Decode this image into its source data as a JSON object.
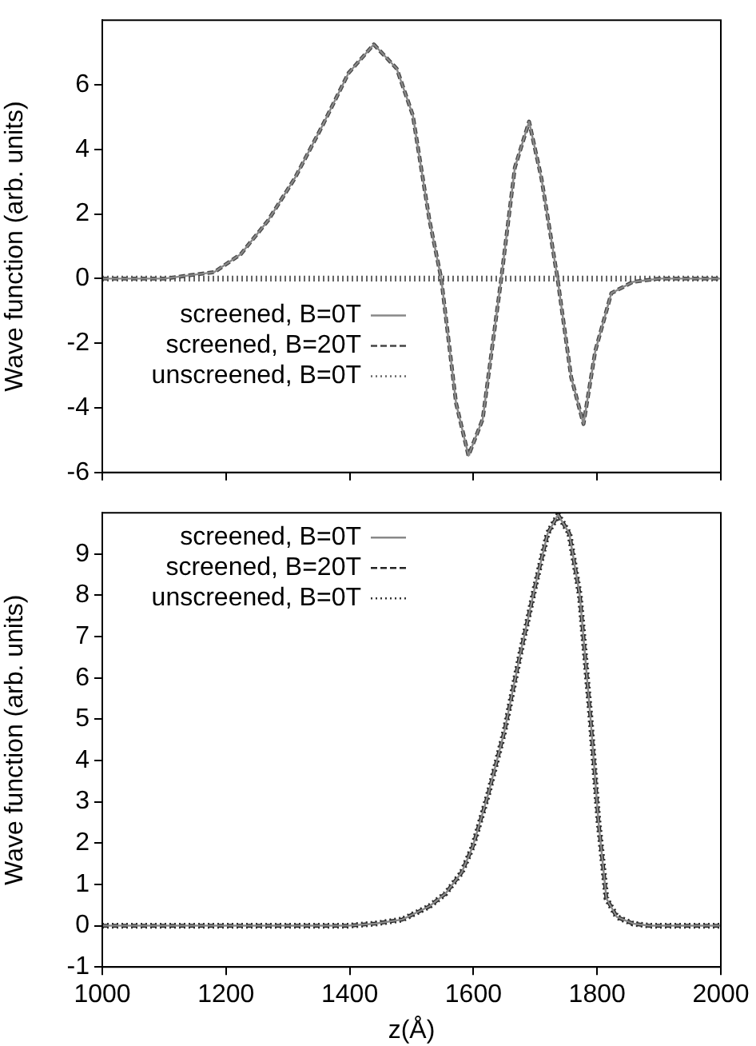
{
  "chart_data": [
    {
      "type": "line",
      "ylabel": "Wave function (arb. units)",
      "xlim": [
        1000,
        2000
      ],
      "xticks": [
        1000,
        1200,
        1400,
        1600,
        1800,
        2000
      ],
      "ylim": [
        -6,
        8
      ],
      "yticks": [
        -6,
        -4,
        -2,
        0,
        2,
        4,
        6
      ],
      "tick_labels": "y",
      "grid": false,
      "legend": "left",
      "marker": "none",
      "x": [
        1000,
        1100,
        1181,
        1224,
        1268,
        1311,
        1355,
        1398,
        1439,
        1476,
        1502,
        1529,
        1548,
        1572,
        1592,
        1615,
        1645,
        1667,
        1690,
        1710,
        1736,
        1758,
        1778,
        1797,
        1823,
        1858,
        1901,
        2000
      ],
      "series": [
        {
          "name": "screened, B=0T",
          "color": "#888888",
          "line_style": "solid",
          "values": [
            0,
            0,
            0.2,
            0.76,
            1.8,
            3.1,
            4.7,
            6.36,
            7.25,
            6.5,
            5.06,
            1.8,
            0,
            -3.86,
            -5.48,
            -4.35,
            0,
            3.44,
            4.86,
            3.1,
            0,
            -3.05,
            -4.5,
            -2.24,
            -0.45,
            -0.1,
            0,
            0
          ]
        },
        {
          "name": "screened, B=20T",
          "color": "#444444",
          "line_style": "dashed",
          "values": [
            0,
            0,
            0.2,
            0.76,
            1.8,
            3.1,
            4.7,
            6.36,
            7.25,
            6.5,
            5.06,
            1.8,
            0,
            -3.86,
            -5.48,
            -4.35,
            0,
            3.44,
            4.86,
            3.1,
            0,
            -3.05,
            -4.5,
            -2.24,
            -0.45,
            -0.1,
            0,
            0
          ]
        },
        {
          "name": "unscreened, B=0T",
          "color": "#666666",
          "line_style": "dotted",
          "values": [
            0,
            0,
            0,
            0,
            0,
            0,
            0,
            0,
            0,
            0,
            0,
            0,
            0,
            0,
            0,
            0,
            0,
            0,
            0,
            0,
            0,
            0,
            0,
            0,
            0,
            0,
            0,
            0
          ]
        }
      ]
    },
    {
      "type": "line",
      "xlabel": "z(Å)",
      "ylabel": "Wave function (arb. units)",
      "xlim": [
        1000,
        2000
      ],
      "xticks": [
        1000,
        1200,
        1400,
        1600,
        1800,
        2000
      ],
      "ylim": [
        -1,
        10
      ],
      "yticks": [
        -1,
        0,
        1,
        2,
        3,
        4,
        5,
        6,
        7,
        8,
        9
      ],
      "grid": false,
      "legend": "top left",
      "marker": "none",
      "x": [
        1000,
        1398,
        1441,
        1485,
        1529,
        1555,
        1581,
        1599,
        1624,
        1650,
        1676,
        1702,
        1720,
        1737,
        1755,
        1772,
        1789,
        1802,
        1815,
        1832,
        1858,
        1884,
        2000
      ],
      "series": [
        {
          "name": "screened, B=0T",
          "color": "#888888",
          "line_style": "solid",
          "values": [
            0,
            0,
            0.05,
            0.15,
            0.47,
            0.78,
            1.29,
            1.92,
            3.19,
            4.7,
            6.6,
            8.37,
            9.5,
            9.95,
            9.5,
            8.0,
            5.08,
            2.55,
            0.66,
            0.21,
            0.05,
            0,
            0
          ]
        },
        {
          "name": "screened, B=20T",
          "color": "#222222",
          "line_style": "dashed",
          "values": [
            0,
            0,
            0.05,
            0.15,
            0.47,
            0.78,
            1.29,
            1.92,
            3.19,
            4.7,
            6.6,
            8.37,
            9.5,
            9.95,
            9.5,
            8.0,
            5.08,
            2.55,
            0.66,
            0.21,
            0.05,
            0,
            0
          ]
        },
        {
          "name": "unscreened, B=0T",
          "color": "#333333",
          "line_style": "dotted",
          "values": [
            0,
            0,
            0.05,
            0.15,
            0.47,
            0.78,
            1.29,
            1.92,
            3.19,
            4.7,
            6.6,
            8.37,
            9.5,
            9.95,
            9.5,
            8.0,
            5.08,
            2.55,
            0.66,
            0.21,
            0.05,
            0,
            0
          ]
        }
      ]
    }
  ]
}
